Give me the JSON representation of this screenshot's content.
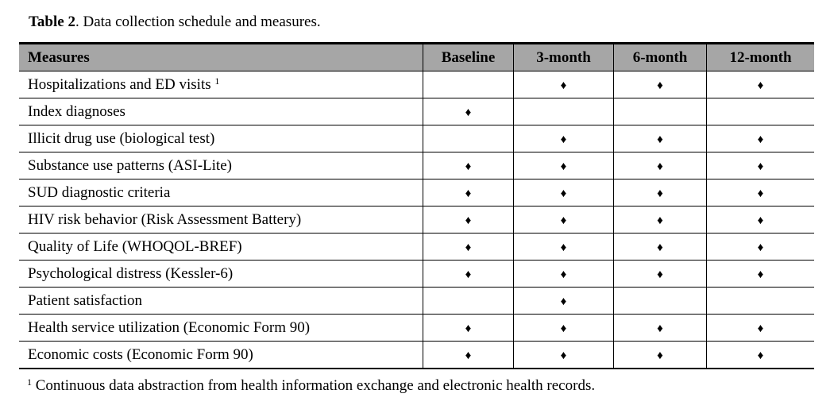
{
  "caption": {
    "label": "Table 2",
    "text": ". Data collection schedule and measures."
  },
  "columns": [
    "Measures",
    "Baseline",
    "3-month",
    "6-month",
    "12-month"
  ],
  "marker": "♦",
  "rows": [
    {
      "measure": "Hospitalizations and ED visits",
      "sup": "1",
      "marks": [
        false,
        true,
        true,
        true
      ]
    },
    {
      "measure": "Index diagnoses",
      "sup": "",
      "marks": [
        true,
        false,
        false,
        false
      ]
    },
    {
      "measure": "Illicit drug use (biological test)",
      "sup": "",
      "marks": [
        false,
        true,
        true,
        true
      ]
    },
    {
      "measure": "Substance use patterns (ASI-Lite)",
      "sup": "",
      "marks": [
        true,
        true,
        true,
        true
      ]
    },
    {
      "measure": "SUD diagnostic criteria",
      "sup": "",
      "marks": [
        true,
        true,
        true,
        true
      ]
    },
    {
      "measure": "HIV risk behavior (Risk Assessment Battery)",
      "sup": "",
      "marks": [
        true,
        true,
        true,
        true
      ]
    },
    {
      "measure": "Quality of Life (WHOQOL-BREF)",
      "sup": "",
      "marks": [
        true,
        true,
        true,
        true
      ]
    },
    {
      "measure": "Psychological distress (Kessler-6)",
      "sup": "",
      "marks": [
        true,
        true,
        true,
        true
      ]
    },
    {
      "measure": "Patient satisfaction",
      "sup": "",
      "marks": [
        false,
        true,
        false,
        false
      ]
    },
    {
      "measure": "Health service utilization (Economic Form 90)",
      "sup": "",
      "marks": [
        true,
        true,
        true,
        true
      ]
    },
    {
      "measure": "Economic costs (Economic Form 90)",
      "sup": "",
      "marks": [
        true,
        true,
        true,
        true
      ]
    }
  ],
  "footnote": {
    "sup": "1",
    "text": " Continuous data abstraction from health information exchange and electronic health records."
  },
  "colors": {
    "header_bg": "#a6a6a6"
  }
}
